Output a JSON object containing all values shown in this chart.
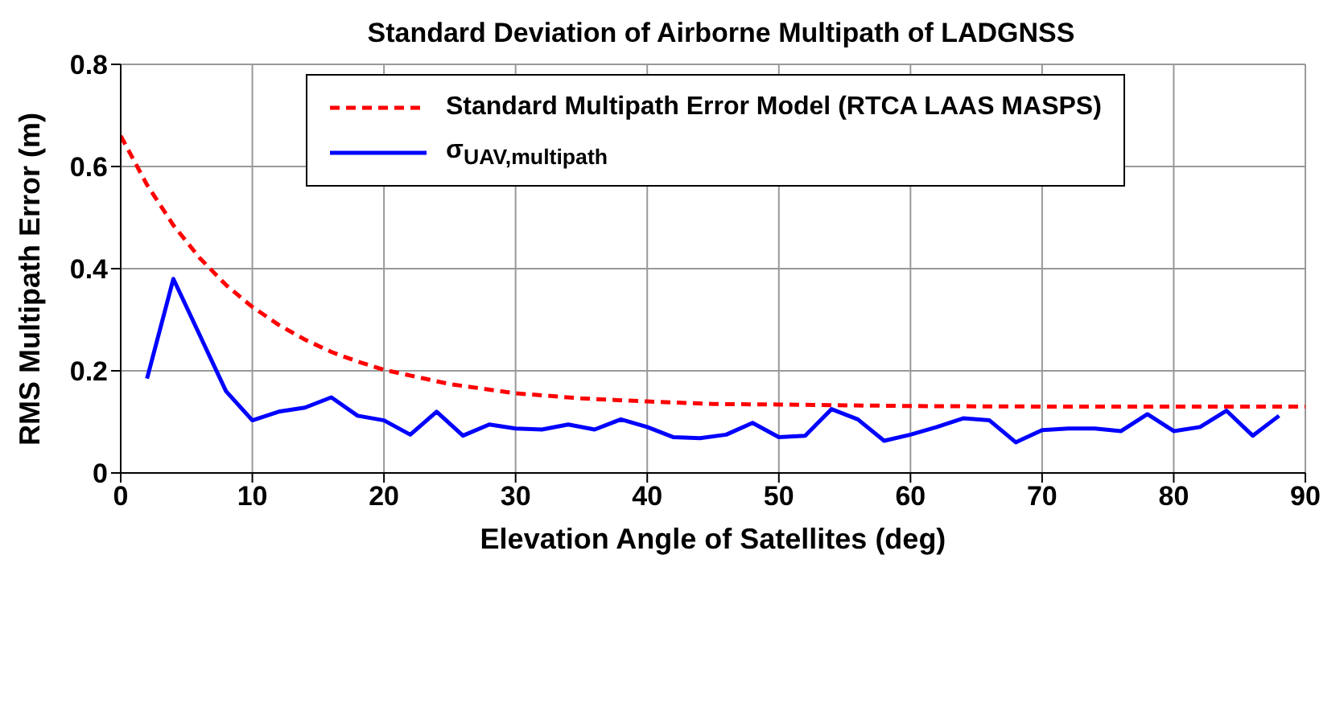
{
  "chart_data": {
    "type": "line",
    "title": "Standard Deviation of Airborne Multipath of LADGNSS",
    "xlabel": "Elevation Angle of Satellites (deg)",
    "ylabel": "RMS Multipath Error (m)",
    "xlim": [
      0,
      90
    ],
    "xticks": [
      0,
      10,
      20,
      30,
      40,
      50,
      60,
      70,
      80,
      90
    ],
    "ylim": [
      0,
      0.8
    ],
    "yticks": [
      0,
      0.2,
      0.4,
      0.6,
      0.8
    ],
    "grid": true,
    "legend": "top",
    "marker": "none",
    "series": [
      {
        "name": "Standard Multipath Error Model (RTCA LAAS MASPS)",
        "color": "#ff0000",
        "line_style": "dashed",
        "x": [
          0,
          2,
          4,
          6,
          8,
          10,
          12,
          14,
          16,
          18,
          20,
          25,
          30,
          35,
          40,
          45,
          50,
          60,
          70,
          80,
          90
        ],
        "values": [
          0.66,
          0.564,
          0.485,
          0.421,
          0.368,
          0.325,
          0.29,
          0.261,
          0.237,
          0.218,
          0.202,
          0.174,
          0.156,
          0.146,
          0.14,
          0.135,
          0.134,
          0.131,
          0.13,
          0.13,
          0.13
        ]
      },
      {
        "name": "σ$_{UAV,multipath}$",
        "color": "#0000ff",
        "line_style": "solid",
        "x": [
          2,
          4,
          6,
          8,
          10,
          12,
          14,
          16,
          18,
          20,
          22,
          24,
          26,
          28,
          30,
          32,
          34,
          36,
          38,
          40,
          42,
          44,
          46,
          48,
          50,
          52,
          54,
          56,
          58,
          60,
          62,
          64,
          66,
          68,
          70,
          72,
          74,
          76,
          78,
          80,
          82,
          84,
          86,
          88
        ],
        "values": [
          0.185,
          0.38,
          0.27,
          0.16,
          0.103,
          0.12,
          0.128,
          0.148,
          0.112,
          0.103,
          0.075,
          0.12,
          0.073,
          0.095,
          0.087,
          0.085,
          0.095,
          0.085,
          0.105,
          0.09,
          0.07,
          0.068,
          0.075,
          0.098,
          0.07,
          0.073,
          0.125,
          0.105,
          0.063,
          0.075,
          0.09,
          0.107,
          0.103,
          0.06,
          0.084,
          0.087,
          0.087,
          0.082,
          0.115,
          0.082,
          0.09,
          0.122,
          0.073,
          0.112
        ]
      }
    ]
  }
}
